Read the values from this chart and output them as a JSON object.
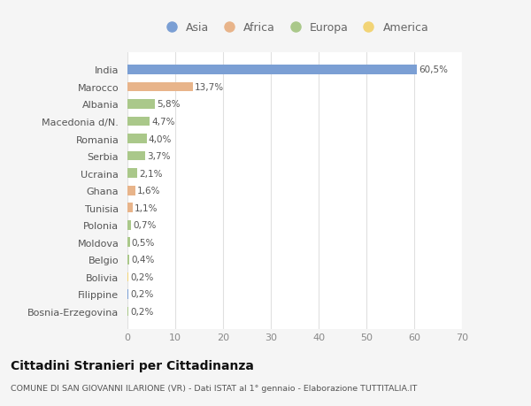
{
  "countries": [
    "India",
    "Marocco",
    "Albania",
    "Macedonia d/N.",
    "Romania",
    "Serbia",
    "Ucraina",
    "Ghana",
    "Tunisia",
    "Polonia",
    "Moldova",
    "Belgio",
    "Bolivia",
    "Filippine",
    "Bosnia-Erzegovina"
  ],
  "values": [
    60.5,
    13.7,
    5.8,
    4.7,
    4.0,
    3.7,
    2.1,
    1.6,
    1.1,
    0.7,
    0.5,
    0.4,
    0.2,
    0.2,
    0.2
  ],
  "labels": [
    "60,5%",
    "13,7%",
    "5,8%",
    "4,7%",
    "4,0%",
    "3,7%",
    "2,1%",
    "1,6%",
    "1,1%",
    "0,7%",
    "0,5%",
    "0,4%",
    "0,2%",
    "0,2%",
    "0,2%"
  ],
  "continents": [
    "Asia",
    "Africa",
    "Europa",
    "Europa",
    "Europa",
    "Europa",
    "Europa",
    "Africa",
    "Africa",
    "Europa",
    "Europa",
    "Europa",
    "America",
    "Asia",
    "Europa"
  ],
  "colors": {
    "Asia": "#7b9fd4",
    "Africa": "#e8b48a",
    "Europa": "#aac88a",
    "America": "#f2d476"
  },
  "legend_order": [
    "Asia",
    "Africa",
    "Europa",
    "America"
  ],
  "title": "Cittadini Stranieri per Cittadinanza",
  "subtitle": "COMUNE DI SAN GIOVANNI ILARIONE (VR) - Dati ISTAT al 1° gennaio - Elaborazione TUTTITALIA.IT",
  "xlim": [
    0,
    70
  ],
  "xticks": [
    0,
    10,
    20,
    30,
    40,
    50,
    60,
    70
  ],
  "background_color": "#f5f5f5",
  "bar_background": "#ffffff",
  "grid_color": "#e0e0e0",
  "label_color": "#555555",
  "tick_color": "#888888",
  "title_color": "#111111",
  "subtitle_color": "#555555"
}
